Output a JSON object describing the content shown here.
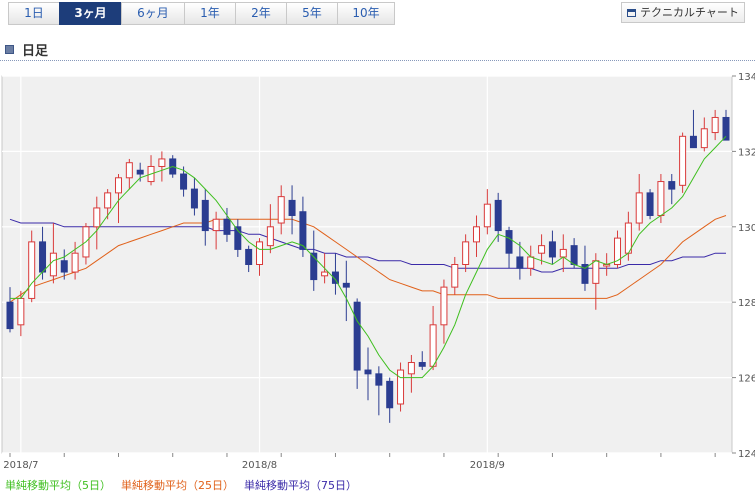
{
  "tabs": [
    {
      "label": "1日",
      "active": false
    },
    {
      "label": "3ヶ月",
      "active": true
    },
    {
      "label": "6ヶ月",
      "active": false
    },
    {
      "label": "1年",
      "active": false
    },
    {
      "label": "2年",
      "active": false
    },
    {
      "label": "5年",
      "active": false
    },
    {
      "label": "10年",
      "active": false
    }
  ],
  "tech_button": {
    "label": "テクニカルチャート",
    "icon": "window-icon"
  },
  "section": {
    "icon": "square-icon",
    "title": "日足"
  },
  "legend": [
    {
      "label": "単純移動平均（5日）",
      "color": "#3fbf1f"
    },
    {
      "label": "単純移動平均（25日）",
      "color": "#e0611a"
    },
    {
      "label": "単純移動平均（75日）",
      "color": "#3a2aa8"
    }
  ],
  "colors": {
    "up": "#d93a3a",
    "down": "#2b3d91",
    "ma5": "#3fbf1f",
    "ma25": "#e0611a",
    "ma75": "#3a2aa8",
    "plot_bg": "#f0f0f0",
    "grid": "#ffffff"
  },
  "chart_data": {
    "type": "candlestick",
    "ylim": [
      124,
      134
    ],
    "y_ticks": [
      124,
      126,
      128,
      130,
      132,
      134
    ],
    "x_tick_labels": [
      {
        "label": "2018/7",
        "index": 1
      },
      {
        "label": "2018/8",
        "index": 23
      },
      {
        "label": "2018/9",
        "index": 44
      }
    ],
    "candles": [
      [
        128.0,
        128.4,
        127.2,
        127.3
      ],
      [
        127.4,
        128.3,
        127.1,
        128.1
      ],
      [
        128.1,
        129.9,
        128.0,
        129.6
      ],
      [
        129.6,
        130.0,
        128.6,
        128.8
      ],
      [
        128.7,
        130.1,
        128.5,
        129.3
      ],
      [
        129.1,
        129.4,
        128.6,
        128.8
      ],
      [
        128.8,
        129.6,
        128.6,
        129.3
      ],
      [
        129.2,
        130.1,
        129.0,
        130.0
      ],
      [
        130.0,
        130.8,
        129.4,
        130.5
      ],
      [
        130.5,
        131.0,
        130.2,
        130.9
      ],
      [
        130.9,
        131.4,
        130.1,
        131.3
      ],
      [
        131.3,
        131.8,
        131.0,
        131.7
      ],
      [
        131.5,
        131.7,
        131.2,
        131.4
      ],
      [
        131.2,
        131.9,
        131.1,
        131.6
      ],
      [
        131.6,
        132.0,
        131.2,
        131.8
      ],
      [
        131.8,
        131.9,
        131.3,
        131.4
      ],
      [
        131.4,
        131.6,
        130.8,
        131.0
      ],
      [
        131.0,
        131.3,
        130.3,
        130.5
      ],
      [
        130.7,
        131.0,
        129.5,
        129.9
      ],
      [
        129.9,
        130.4,
        129.4,
        130.2
      ],
      [
        130.2,
        130.5,
        129.6,
        129.8
      ],
      [
        130.0,
        130.2,
        129.2,
        129.4
      ],
      [
        129.4,
        129.5,
        128.8,
        129.0
      ],
      [
        129.0,
        129.7,
        128.7,
        129.6
      ],
      [
        129.5,
        130.6,
        129.3,
        130.0
      ],
      [
        130.1,
        131.1,
        129.8,
        130.8
      ],
      [
        130.7,
        131.1,
        129.8,
        130.3
      ],
      [
        130.4,
        130.8,
        129.2,
        129.4
      ],
      [
        129.3,
        129.9,
        128.3,
        128.6
      ],
      [
        128.7,
        129.3,
        128.5,
        128.8
      ],
      [
        128.8,
        129.3,
        128.2,
        128.5
      ],
      [
        128.5,
        129.1,
        127.5,
        128.4
      ],
      [
        128.0,
        128.1,
        125.7,
        126.2
      ],
      [
        126.2,
        126.8,
        125.4,
        126.1
      ],
      [
        126.1,
        126.3,
        125.0,
        125.8
      ],
      [
        125.9,
        126.0,
        124.8,
        125.2
      ],
      [
        125.3,
        126.4,
        125.1,
        126.2
      ],
      [
        126.1,
        126.6,
        125.6,
        126.4
      ],
      [
        126.4,
        126.7,
        126.2,
        126.3
      ],
      [
        126.3,
        127.9,
        126.2,
        127.4
      ],
      [
        127.4,
        128.6,
        126.9,
        128.4
      ],
      [
        128.4,
        129.2,
        128.2,
        129.0
      ],
      [
        129.0,
        129.8,
        128.8,
        129.6
      ],
      [
        129.6,
        130.3,
        129.2,
        130.0
      ],
      [
        130.0,
        131.0,
        129.8,
        130.6
      ],
      [
        130.7,
        130.9,
        129.6,
        129.9
      ],
      [
        129.9,
        130.0,
        128.9,
        129.3
      ],
      [
        129.2,
        129.6,
        128.6,
        128.9
      ],
      [
        128.9,
        129.5,
        128.7,
        129.2
      ],
      [
        129.3,
        129.8,
        129.0,
        129.5
      ],
      [
        129.6,
        129.9,
        129.0,
        129.2
      ],
      [
        129.2,
        129.8,
        128.8,
        129.4
      ],
      [
        129.5,
        129.7,
        128.9,
        129.0
      ],
      [
        129.0,
        129.5,
        128.3,
        128.5
      ],
      [
        128.5,
        129.3,
        127.8,
        129.1
      ],
      [
        129.0,
        129.3,
        128.7,
        129.0
      ],
      [
        129.0,
        129.9,
        128.9,
        129.7
      ],
      [
        129.3,
        130.4,
        129.1,
        130.1
      ],
      [
        130.1,
        131.4,
        129.9,
        130.9
      ],
      [
        130.9,
        131.0,
        130.2,
        130.3
      ],
      [
        130.3,
        131.4,
        130.1,
        131.2
      ],
      [
        131.2,
        131.4,
        130.6,
        131.0
      ],
      [
        131.1,
        132.5,
        130.9,
        132.4
      ],
      [
        132.4,
        133.1,
        132.2,
        132.1
      ],
      [
        132.1,
        132.9,
        132.0,
        132.6
      ],
      [
        132.5,
        133.1,
        132.3,
        132.9
      ],
      [
        132.9,
        133.1,
        132.4,
        132.3
      ]
    ],
    "ma5": [
      128.1,
      128.1,
      128.5,
      128.8,
      129.1,
      129.2,
      129.4,
      129.6,
      129.9,
      130.3,
      130.7,
      131.0,
      131.3,
      131.4,
      131.5,
      131.6,
      131.5,
      131.3,
      131.0,
      130.7,
      130.3,
      129.9,
      129.6,
      129.4,
      129.4,
      129.5,
      129.6,
      129.5,
      129.2,
      128.9,
      128.6,
      128.1,
      127.5,
      127.1,
      126.6,
      126.2,
      126.0,
      126.0,
      126.0,
      126.3,
      126.8,
      127.4,
      128.2,
      128.8,
      129.4,
      129.8,
      129.7,
      129.5,
      129.2,
      129.1,
      129.0,
      129.2,
      129.0,
      128.9,
      129.1,
      129.0,
      129.1,
      129.3,
      129.8,
      130.1,
      130.3,
      130.5,
      130.8,
      131.3,
      131.8,
      132.1,
      132.4
    ],
    "ma25": [
      128.0,
      128.2,
      128.4,
      128.5,
      128.6,
      128.7,
      128.8,
      128.9,
      129.1,
      129.3,
      129.5,
      129.6,
      129.7,
      129.8,
      129.9,
      130.0,
      130.1,
      130.1,
      130.1,
      130.2,
      130.2,
      130.2,
      130.2,
      130.2,
      130.2,
      130.2,
      130.2,
      130.1,
      130.0,
      129.8,
      129.6,
      129.4,
      129.2,
      129.0,
      128.8,
      128.6,
      128.5,
      128.4,
      128.3,
      128.3,
      128.2,
      128.2,
      128.2,
      128.2,
      128.2,
      128.1,
      128.1,
      128.1,
      128.1,
      128.1,
      128.1,
      128.1,
      128.1,
      128.1,
      128.1,
      128.1,
      128.2,
      128.4,
      128.6,
      128.8,
      129.0,
      129.3,
      129.6,
      129.8,
      130.0,
      130.2,
      130.3
    ],
    "ma75": [
      130.2,
      130.1,
      130.1,
      130.1,
      130.1,
      130.0,
      130.0,
      130.0,
      130.0,
      130.0,
      130.0,
      130.0,
      130.0,
      130.0,
      130.0,
      130.0,
      130.0,
      130.0,
      130.0,
      129.9,
      129.9,
      129.9,
      129.8,
      129.8,
      129.7,
      129.6,
      129.5,
      129.4,
      129.4,
      129.3,
      129.3,
      129.2,
      129.2,
      129.2,
      129.1,
      129.1,
      129.1,
      129.0,
      129.0,
      129.0,
      129.0,
      128.9,
      128.9,
      128.9,
      128.9,
      128.9,
      128.9,
      128.9,
      128.9,
      128.8,
      128.8,
      128.9,
      128.9,
      128.9,
      128.9,
      128.9,
      128.9,
      129.0,
      129.0,
      129.0,
      129.1,
      129.1,
      129.2,
      129.2,
      129.2,
      129.3,
      129.3
    ]
  }
}
